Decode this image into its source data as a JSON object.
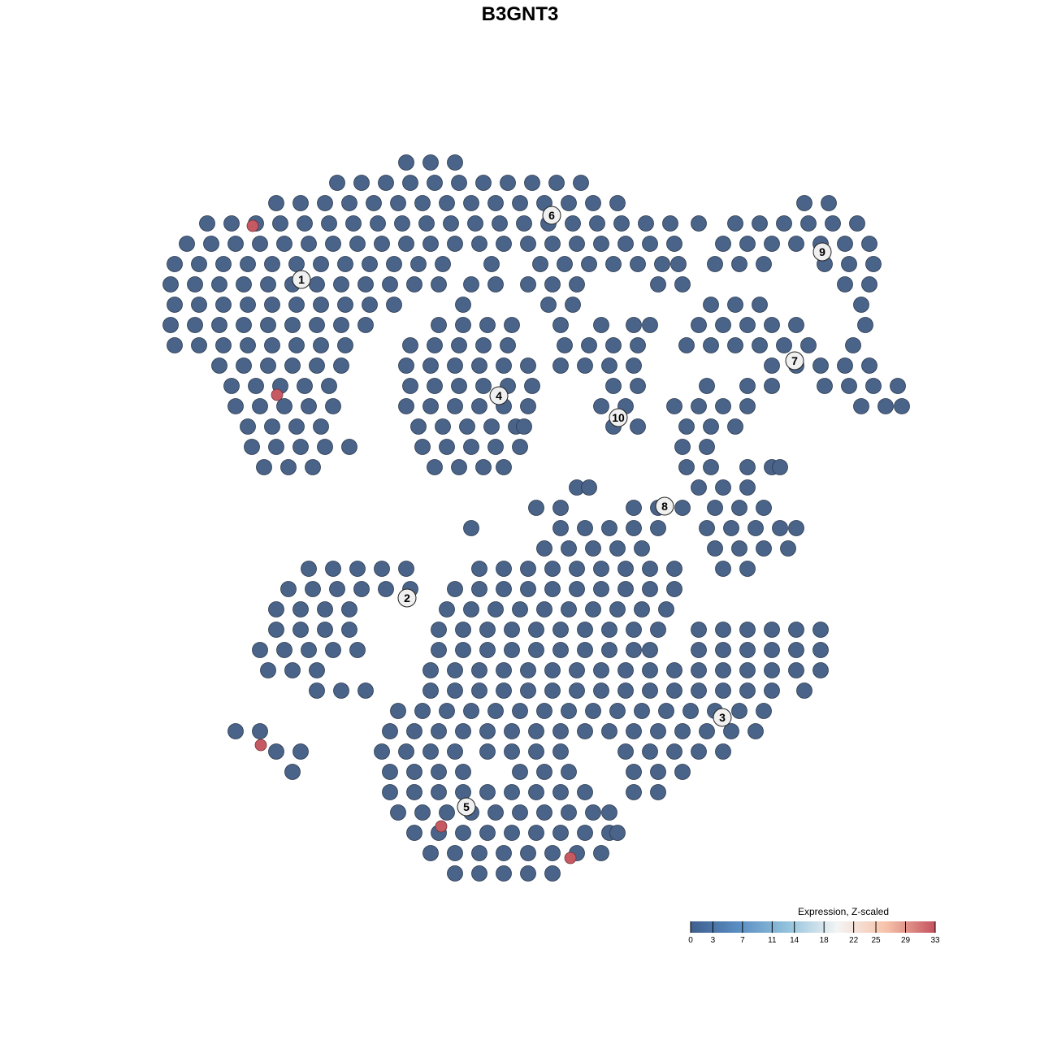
{
  "chart_data": {
    "type": "scatter",
    "title": "B3GNT3",
    "xlabel": "",
    "ylabel": "",
    "grid": false,
    "point_color_low": "#4a6489",
    "point_color_high": "#c65a63",
    "points": [
      {
        "y": 44,
        "x": [
          -14,
          -11,
          -8
        ]
      },
      {
        "y": 41.5,
        "x": [
          -22.5,
          -19.5,
          -16.5,
          -13.5,
          -10.5,
          -7.5,
          -4.5,
          -1.5,
          1.5,
          4.5,
          7.5
        ]
      },
      {
        "y": 39,
        "x": [
          -30,
          -27,
          -24,
          -21,
          -18,
          -15,
          -12,
          -9,
          -6,
          -3,
          0,
          3,
          6,
          9,
          12,
          35,
          38
        ]
      },
      {
        "y": 36.5,
        "x": [
          -38.5,
          -35.5,
          -32.5,
          -29.5,
          -26.5,
          -23.5,
          -20.5,
          -17.5,
          -14.5,
          -11.5,
          -8.5,
          -5.5,
          -2.5,
          0.5,
          3.5,
          6.5,
          9.5,
          12.5,
          15.5,
          18.5,
          22,
          26.5,
          29.5,
          32.5,
          35.5,
          38.5,
          41.5
        ]
      },
      {
        "y": 34,
        "x": [
          -41,
          -38,
          -35,
          -32,
          -29,
          -26,
          -23,
          -20,
          -17,
          -14,
          -11,
          -8,
          -5,
          -2,
          1,
          4,
          7,
          10,
          13,
          16,
          19,
          25,
          28,
          31,
          34,
          37,
          40,
          43
        ]
      },
      {
        "y": 31.5,
        "x": [
          -42.5,
          -39.5,
          -36.5,
          -33.5,
          -30.5,
          -27.5,
          -24.5,
          -21.5,
          -18.5,
          -15.5,
          -12.5,
          -9.5,
          -3.5,
          2.5,
          5.5,
          8.5,
          11.5,
          14.5,
          17.5,
          19.5,
          24,
          27,
          30,
          37.5,
          40.5,
          43.5
        ]
      },
      {
        "y": 29,
        "x": [
          -43,
          -40,
          -37,
          -34,
          -31,
          -28,
          -25,
          -22,
          -19,
          -16,
          -13,
          -10,
          -6,
          -3,
          1,
          4,
          7,
          17,
          20,
          40,
          43
        ]
      },
      {
        "y": 26.5,
        "x": [
          -42.5,
          -39.5,
          -36.5,
          -33.5,
          -30.5,
          -27.5,
          -24.5,
          -21.5,
          -18.5,
          -15.5,
          -7,
          3.5,
          6.5,
          23.5,
          26.5,
          29.5,
          42
        ]
      },
      {
        "y": 24,
        "x": [
          -43,
          -40,
          -37,
          -34,
          -31,
          -28,
          -25,
          -22,
          -19,
          -10,
          -7,
          -4,
          -1,
          5,
          10,
          14,
          16,
          22,
          25,
          28,
          31,
          34,
          42.5
        ]
      },
      {
        "y": 21.5,
        "x": [
          -42.5,
          -39.5,
          -36.5,
          -33.5,
          -30.5,
          -27.5,
          -24.5,
          -21.5,
          -13.5,
          -10.5,
          -7.5,
          -4.5,
          -1.5,
          5.5,
          8.5,
          11.5,
          14.5,
          20.5,
          23.5,
          26.5,
          29.5,
          32.5,
          35.5,
          41
        ]
      },
      {
        "y": 19,
        "x": [
          -37,
          -34,
          -31,
          -28,
          -25,
          -22,
          -14,
          -11,
          -8,
          -5,
          -2,
          1,
          5,
          8,
          11,
          14,
          31,
          34,
          37,
          40,
          43
        ]
      },
      {
        "y": 16.5,
        "x": [
          -35.5,
          -32.5,
          -29.5,
          -26.5,
          -23.5,
          -13.5,
          -10.5,
          -7.5,
          -4.5,
          -1.5,
          1.5,
          11.5,
          14.5,
          23,
          28,
          31,
          37.5,
          40.5,
          43.5,
          46.5
        ]
      },
      {
        "y": 14,
        "x": [
          -35,
          -32,
          -29,
          -26,
          -23,
          -14,
          -11,
          -8,
          -5,
          -2,
          1,
          10,
          13,
          19,
          22,
          25,
          28,
          42,
          45,
          47
        ]
      },
      {
        "y": 11.5,
        "x": [
          -33.5,
          -30.5,
          -27.5,
          -24.5,
          -12.5,
          -9.5,
          -6.5,
          -3.5,
          -0.5,
          0.5,
          11.5,
          14.5,
          20.5,
          23.5,
          26.5
        ]
      },
      {
        "y": 9,
        "x": [
          -33,
          -30,
          -27,
          -24,
          -21,
          -12,
          -9,
          -6,
          -3,
          0,
          20,
          23
        ]
      },
      {
        "y": 6.5,
        "x": [
          -31.5,
          -28.5,
          -25.5,
          -10.5,
          -7.5,
          -4.5,
          -2,
          20.5,
          23.5,
          28,
          31,
          32
        ]
      },
      {
        "y": 4,
        "x": [
          7,
          8.5,
          22,
          25,
          28
        ]
      },
      {
        "y": 1.5,
        "x": [
          2,
          5,
          14,
          17,
          20,
          24,
          27,
          30
        ]
      },
      {
        "y": -1,
        "x": [
          -6,
          5,
          8,
          11,
          14,
          17,
          23,
          26,
          29,
          32,
          34
        ]
      },
      {
        "y": -3.5,
        "x": [
          3,
          6,
          9,
          12,
          15,
          24,
          27,
          30,
          33
        ]
      },
      {
        "y": -6,
        "x": [
          -26,
          -23,
          -20,
          -17,
          -14,
          -5,
          -2,
          1,
          4,
          7,
          10,
          13,
          16,
          19,
          25,
          28
        ]
      },
      {
        "y": -8.5,
        "x": [
          -28.5,
          -25.5,
          -22.5,
          -19.5,
          -16.5,
          -13.5,
          -8,
          -5,
          -2,
          1,
          4,
          7,
          10,
          13,
          16,
          19
        ]
      },
      {
        "y": -11,
        "x": [
          -30,
          -27,
          -24,
          -21,
          -9,
          -6,
          -3,
          0,
          3,
          6,
          9,
          12,
          15,
          18
        ]
      },
      {
        "y": -13.5,
        "x": [
          -30,
          -27,
          -24,
          -21,
          -10,
          -7,
          -4,
          -1,
          2,
          5,
          8,
          11,
          14,
          17,
          22,
          25,
          28,
          31,
          34,
          37
        ]
      },
      {
        "y": -16,
        "x": [
          -32,
          -29,
          -26,
          -23,
          -20,
          -10,
          -7,
          -4,
          -1,
          2,
          5,
          8,
          11,
          14,
          16,
          22,
          25,
          28,
          31,
          34,
          37
        ]
      },
      {
        "y": -18.5,
        "x": [
          -31,
          -28,
          -25,
          -11,
          -8,
          -5,
          -2,
          1,
          4,
          7,
          10,
          13,
          16,
          19,
          22,
          25,
          28,
          31,
          34,
          37
        ]
      },
      {
        "y": -21,
        "x": [
          -25,
          -22,
          -19,
          -11,
          -8,
          -5,
          -2,
          1,
          4,
          7,
          10,
          13,
          16,
          19,
          22,
          25,
          28,
          31,
          35
        ]
      },
      {
        "y": -23.5,
        "x": [
          -15,
          -12,
          -9,
          -6,
          -3,
          0,
          3,
          6,
          9,
          12,
          15,
          18,
          21,
          24,
          27,
          30
        ]
      },
      {
        "y": -26,
        "x": [
          -35,
          -32,
          -16,
          -13,
          -10,
          -7,
          -4,
          -1,
          2,
          5,
          8,
          11,
          14,
          17,
          20,
          23,
          26,
          29
        ]
      },
      {
        "y": -28.5,
        "x": [
          -30,
          -27,
          -17,
          -14,
          -11,
          -8,
          -4,
          -1,
          2,
          5,
          13,
          16,
          19,
          22,
          25
        ]
      },
      {
        "y": -31,
        "x": [
          -28,
          -16,
          -13,
          -10,
          -7,
          0,
          3,
          6,
          14,
          17,
          20
        ]
      },
      {
        "y": -33.5,
        "x": [
          -16,
          -13,
          -10,
          -7,
          -4,
          -1,
          2,
          5,
          8,
          14,
          17
        ]
      },
      {
        "y": -36,
        "x": [
          -15,
          -12,
          -9,
          -6,
          -3,
          0,
          3,
          6,
          9,
          11
        ]
      },
      {
        "y": -38.5,
        "x": [
          -13,
          -10,
          -7,
          -4,
          -1,
          2,
          5,
          8,
          11,
          12
        ]
      },
      {
        "y": -41,
        "x": [
          -11,
          -8,
          -5,
          -2,
          1,
          4,
          7,
          10
        ]
      },
      {
        "y": -43.5,
        "x": [
          -8,
          -5,
          -2,
          1,
          4
        ]
      }
    ],
    "high_points": [
      {
        "x": -32.9,
        "y": 36.2,
        "value": 33
      },
      {
        "x": -29.9,
        "y": 15.4,
        "value": 33
      },
      {
        "x": -31.9,
        "y": -27.7,
        "value": 33
      },
      {
        "x": -9.7,
        "y": -37.7,
        "value": 33
      },
      {
        "x": 6.2,
        "y": -41.6,
        "value": 33
      }
    ],
    "cluster_labels": [
      {
        "label": "1",
        "x": -26.9,
        "y": 29.6
      },
      {
        "label": "2",
        "x": -13.9,
        "y": -9.6
      },
      {
        "label": "3",
        "x": 24.9,
        "y": -24.3
      },
      {
        "label": "4",
        "x": -2.6,
        "y": 15.3
      },
      {
        "label": "5",
        "x": -6.6,
        "y": -35.3
      },
      {
        "label": "6",
        "x": 3.9,
        "y": 37.5
      },
      {
        "label": "7",
        "x": 33.8,
        "y": 19.6
      },
      {
        "label": "8",
        "x": 17.8,
        "y": 1.7
      },
      {
        "label": "9",
        "x": 37.2,
        "y": 33.0
      },
      {
        "label": "10",
        "x": 12.1,
        "y": 12.6
      }
    ],
    "legend": {
      "title": "Expression, Z-scaled",
      "placement": "bottom-right",
      "range": [
        0,
        33
      ],
      "ticks": [
        "0",
        "3",
        "7",
        "11",
        "14",
        "18",
        "22",
        "25",
        "29",
        "33"
      ],
      "colors": [
        "#3f5f8f",
        "#5b8fc4",
        "#93c3dc",
        "#f4f4f4",
        "#f6c2a9",
        "#c4525f"
      ]
    }
  }
}
